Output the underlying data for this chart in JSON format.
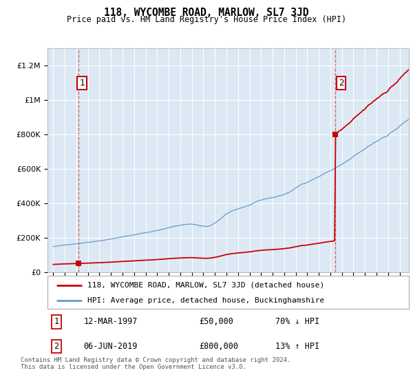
{
  "title": "118, WYCOMBE ROAD, MARLOW, SL7 3JD",
  "subtitle": "Price paid vs. HM Land Registry's House Price Index (HPI)",
  "sale1_date": 1997.19,
  "sale1_price": 50000,
  "sale2_date": 2019.43,
  "sale2_price": 800000,
  "hpi_label": "HPI: Average price, detached house, Buckinghamshire",
  "property_label": "118, WYCOMBE ROAD, MARLOW, SL7 3JD (detached house)",
  "sale1_label": "12-MAR-1997",
  "sale1_str": "£50,000",
  "sale1_hpi": "70% ↓ HPI",
  "sale2_label": "06-JUN-2019",
  "sale2_str": "£800,000",
  "sale2_hpi": "13% ↑ HPI",
  "footer": "Contains HM Land Registry data © Crown copyright and database right 2024.\nThis data is licensed under the Open Government Licence v3.0.",
  "property_color": "#cc0000",
  "hpi_color": "#6699cc",
  "background_color": "#dce9f5",
  "ylim_max": 1300000,
  "xlim_min": 1994.5,
  "xlim_max": 2025.8
}
